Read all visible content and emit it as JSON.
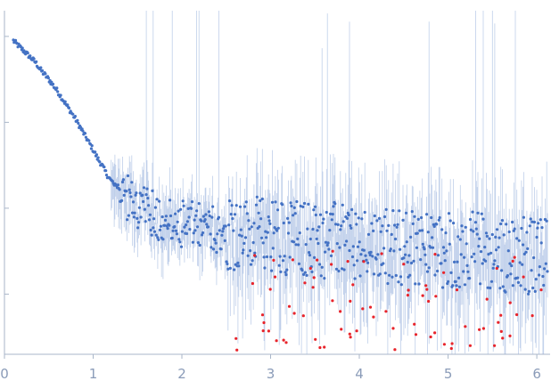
{
  "chart_data": {
    "type": "scatter",
    "title": "",
    "xlabel": "",
    "ylabel": "",
    "y_scale": "log",
    "xlim": [
      0,
      6.15
    ],
    "ylim_log10": [
      -3.7,
      0.3
    ],
    "x_ticks": [
      "0",
      "1",
      "2",
      "3",
      "4",
      "5",
      "6"
    ],
    "y_tick_values_log10": [
      0,
      -1,
      -2,
      -3
    ],
    "y_tick_labels_visible": false,
    "grid": false,
    "legend": "none",
    "colors": {
      "fitted_points": "#4472c4",
      "outlier_points": "#e8242b",
      "error_bars": "#a9bfe3",
      "axis": "#a9b6c9",
      "tick_labels": "#8a9bb8"
    },
    "series": [
      {
        "role": "data points used (blue)",
        "x": [
          0.1,
          0.15,
          0.2,
          0.25,
          0.3,
          0.35,
          0.4,
          0.45,
          0.5,
          0.55,
          0.6,
          0.65,
          0.7,
          0.75,
          0.8,
          0.85,
          0.9,
          0.95,
          1.0,
          1.05,
          1.1,
          1.15,
          1.2,
          1.25,
          1.3,
          1.4,
          1.5,
          1.6,
          1.7,
          1.8,
          1.9,
          2.0,
          2.2,
          2.4,
          2.6,
          2.8,
          3.0,
          3.2,
          3.4,
          3.6,
          3.8,
          4.0,
          4.2,
          4.4,
          4.6,
          4.8,
          5.0,
          5.2,
          5.4,
          5.6,
          5.8,
          6.0,
          6.1
        ],
        "y_log10": [
          -0.05,
          -0.1,
          -0.15,
          -0.2,
          -0.25,
          -0.3,
          -0.38,
          -0.44,
          -0.5,
          -0.57,
          -0.64,
          -0.72,
          -0.8,
          -0.88,
          -0.96,
          -1.05,
          -1.14,
          -1.23,
          -1.32,
          -1.42,
          -1.5,
          -1.6,
          -1.68,
          -1.72,
          -1.76,
          -1.9,
          -1.98,
          -2.04,
          -2.08,
          -2.12,
          -2.15,
          -2.18,
          -2.22,
          -2.25,
          -2.28,
          -2.32,
          -2.3,
          -2.33,
          -2.35,
          -2.38,
          -2.36,
          -2.4,
          -2.42,
          -2.45,
          -2.44,
          -2.48,
          -2.5,
          -2.45,
          -2.52,
          -2.55,
          -2.5,
          -2.6,
          -2.55
        ]
      },
      {
        "role": "data points excluded (red)",
        "x": [
          2.62,
          2.82,
          3.05,
          3.25,
          3.45,
          3.7,
          3.9,
          4.05,
          4.3,
          4.5,
          4.62,
          4.75,
          4.85,
          4.95,
          5.1,
          5.25,
          5.4,
          5.55,
          5.7,
          5.85,
          5.95,
          6.05
        ],
        "y_log10": [
          -3.65,
          -2.55,
          -2.8,
          -2.6,
          -2.7,
          -2.5,
          -3.5,
          -2.62,
          -3.2,
          -2.65,
          -3.35,
          -2.9,
          -3.45,
          -2.75,
          -2.95,
          -3.6,
          -3.4,
          -2.7,
          -3.1,
          -2.8,
          -3.25,
          -2.95
        ]
      }
    ]
  }
}
